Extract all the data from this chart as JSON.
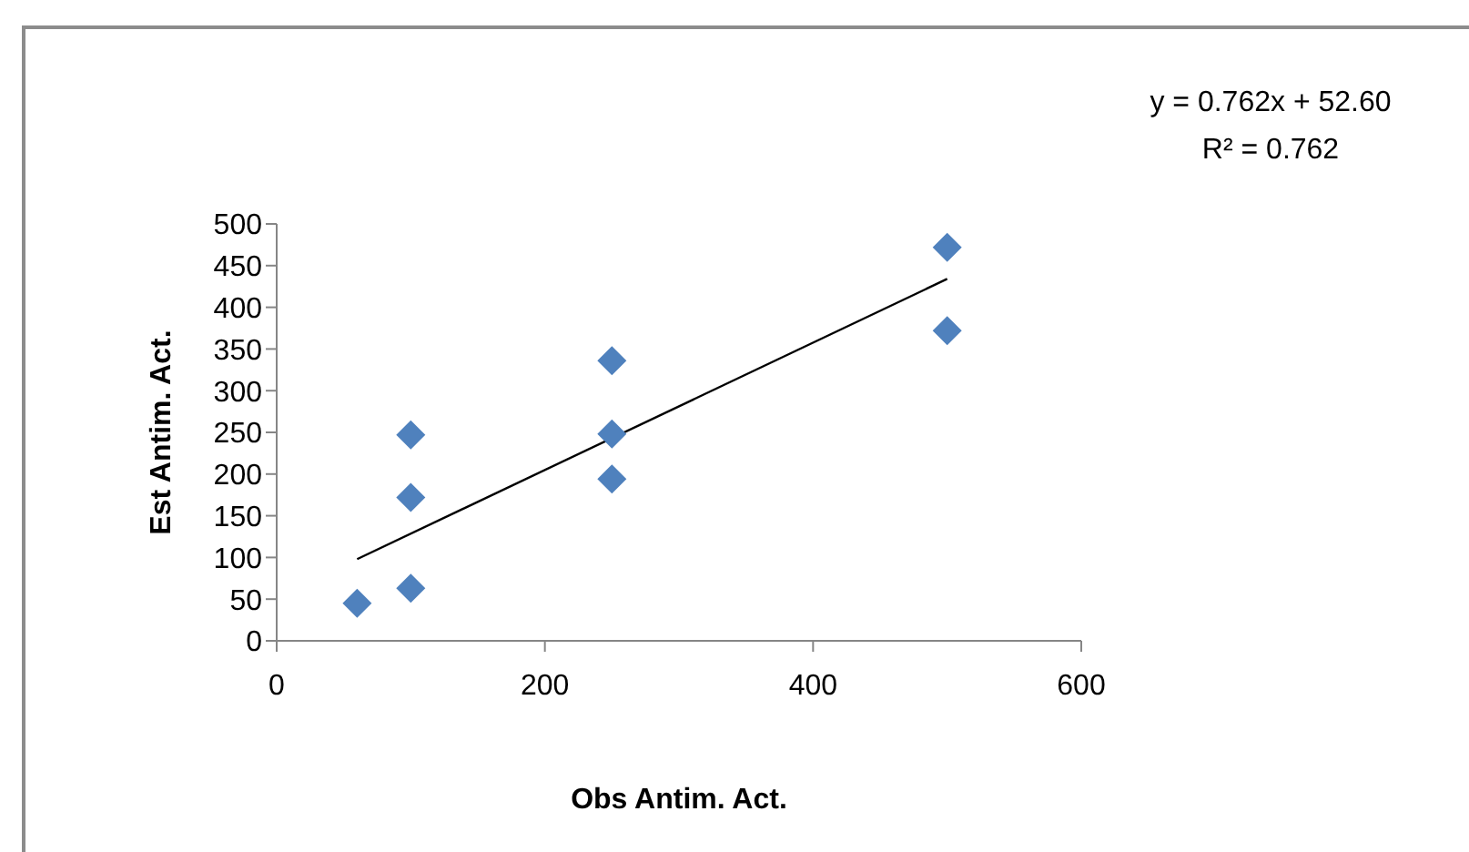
{
  "chart_data": {
    "type": "scatter",
    "xlabel": "Obs Antim. Act.",
    "ylabel": "Est Antim. Act.",
    "marker": "diamond",
    "series": [
      {
        "color": "#4f81bd",
        "x": [
          60,
          100,
          100,
          100,
          250,
          250,
          250,
          500,
          500
        ],
        "values": [
          45,
          63,
          172,
          247,
          336,
          248,
          194,
          472,
          372
        ]
      },
      {
        "type": "line",
        "color": "#000000",
        "x": [
          60,
          500
        ],
        "values": [
          98,
          434
        ],
        "marker": "none"
      }
    ],
    "xlim": [
      0,
      600
    ],
    "xticks": [
      0,
      200,
      400,
      600
    ],
    "ylim": [
      0,
      500
    ],
    "yticks": [
      0,
      50,
      100,
      150,
      200,
      250,
      300,
      350,
      400,
      450,
      500
    ],
    "annotations": [
      "y = 0.762x + 52.60",
      "R² = 0.762"
    ]
  }
}
